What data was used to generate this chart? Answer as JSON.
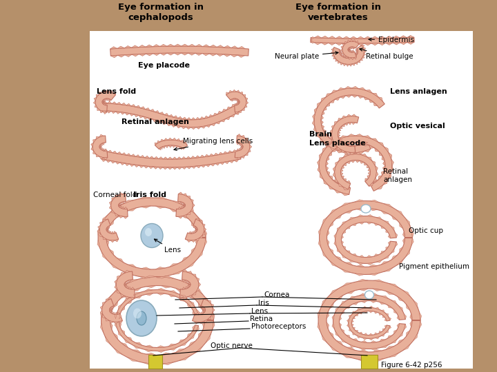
{
  "title_left": "Eye formation in\ncephalopods",
  "title_right": "Eye formation in\nvertebrates",
  "figure_label": "Figure 6-42 p256",
  "bg_color": "#b5906a",
  "white_bg": "#ffffff",
  "salmon_fill": "#e8b09a",
  "salmon_edge": "#c07060",
  "salmon_dark": "#8b4030",
  "blue_lens": "#b0cce0",
  "yellow_nerve": "#d4c830",
  "labels": {
    "eye_placode": "Eye placode",
    "neural_plate": "Neural plate",
    "retinal_bulge": "Retinal bulge",
    "epidermis": "Epidermis",
    "lens_fold": "Lens fold",
    "lens_anlagen": "Lens anlagen",
    "retinal_anlagen_left": "Retinal anlagen",
    "optic_vesical": "Optic vesical",
    "brain": "Brain",
    "migrating_lens_cells": "Migrating lens cells",
    "lens_placode": "Lens placode",
    "retinal_anlagen_right": "Retinal\nanlagen",
    "corneal_fold": "Corneal fold",
    "iris_fold": "Iris fold",
    "lens_small": "Lens",
    "optic_cup": "Optic cup",
    "pigment_epithelium": "Pigment epithelium",
    "cornea": "Cornea",
    "iris": "Iris",
    "lens_large": "Lens",
    "retina": "Retina",
    "photoreceptors": "Photoreceptors",
    "optic_nerve": "Optic nerve"
  }
}
